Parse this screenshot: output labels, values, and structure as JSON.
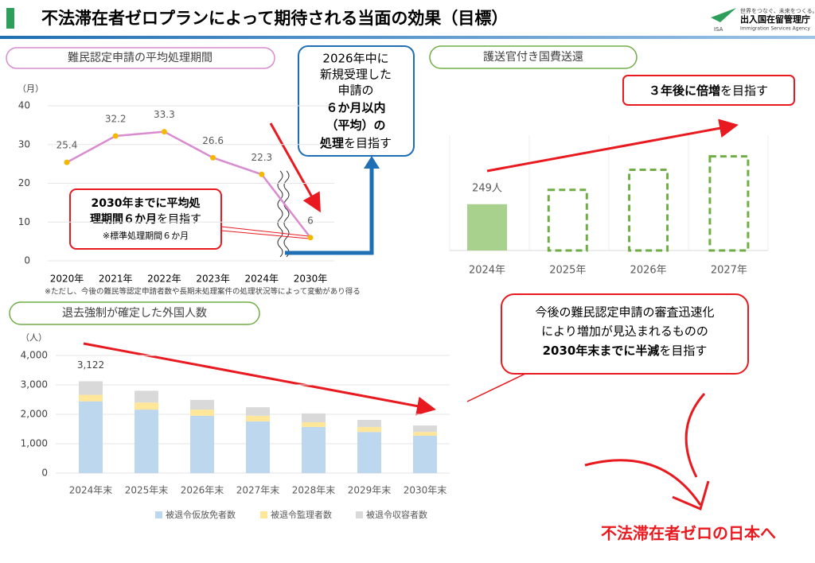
{
  "header": {
    "title": "不法滞在者ゼロプランによって期待される当面の効果（目標）",
    "logo": {
      "tagline": "世界をつなぐ、未来をつくる。",
      "name": "出入国在留管理庁",
      "english": "Immigration Services Agency",
      "abbr": "ISA"
    }
  },
  "chart_data": [
    {
      "type": "line",
      "title": "難民認定申請の平均処理期間",
      "y_unit": "（月）",
      "categories": [
        "2020年",
        "2021年",
        "2022年",
        "2023年",
        "2024年",
        "2030年"
      ],
      "values": [
        25.4,
        32.2,
        33.3,
        26.6,
        22.3,
        6
      ],
      "color": "#d98bd0",
      "marker_color": "#f5b800",
      "ylim": [
        0,
        40
      ],
      "yticks": [
        0,
        10,
        20,
        30,
        40
      ],
      "grid": true,
      "note": "※ただし、今後の難民等認定申請者数や長期未処理案件の処理状況等によって変動があり得る",
      "callout": [
        "2030年までに平均処",
        "理期間６か月",
        "を目指す",
        "※標準処理期間６か月"
      ]
    },
    {
      "type": "bar",
      "title": "護送官付き国費送還",
      "categories": [
        "2024年",
        "2025年",
        "2026年",
        "2027年"
      ],
      "values": [
        249,
        326,
        434,
        506
      ],
      "value_labels": [
        "249人",
        null,
        null,
        null
      ],
      "styles": [
        "solid",
        "dashed",
        "dashed",
        "dashed"
      ],
      "color": "#a9d18e",
      "target_color": "#70ad47",
      "ylim": [
        0,
        620
      ],
      "callout": [
        "３年後に",
        "倍増",
        "を目指す"
      ]
    },
    {
      "type": "stacked_bar",
      "title": "退去強制が確定した外国人数",
      "y_unit": "（人）",
      "categories": [
        "2024年末",
        "2025年末",
        "2026年末",
        "2027年末",
        "2028年末",
        "2029年末",
        "2030年末"
      ],
      "series": [
        {
          "name": "被退令仮放免者数",
          "color": "#bdd7ee",
          "values": [
            2440,
            2160,
            1950,
            1760,
            1570,
            1400,
            1270
          ]
        },
        {
          "name": "被退令監理者数",
          "color": "#ffe699",
          "values": [
            220,
            240,
            210,
            190,
            160,
            170,
            130
          ]
        },
        {
          "name": "被退令収容者数",
          "color": "#d9d9d9",
          "values": [
            462,
            400,
            330,
            290,
            300,
            240,
            220
          ]
        }
      ],
      "totals": [
        3122,
        null,
        null,
        null,
        null,
        null,
        null
      ],
      "total_labels": [
        "3,122",
        null,
        null,
        null,
        null,
        null,
        null
      ],
      "ylim": [
        0,
        4000
      ],
      "yticks": [
        0,
        {
          "value": 1000,
          "label": "1,000"
        },
        {
          "value": 2000,
          "label": "2,000"
        },
        {
          "value": 3000,
          "label": "3,000"
        },
        {
          "value": 4000,
          "label": "4,000"
        }
      ],
      "grid": true,
      "legend": "bottom",
      "callout": [
        "今後の難民認定申請の審査迅速化",
        "により増加が見込まれるものの",
        "2030年末までに半減",
        "を目指す"
      ]
    }
  ],
  "processing_target": [
    "2026年中に",
    "新規受理した",
    "申請の",
    "６か月以内",
    "（平均）の",
    "処理",
    "を目指す"
  ],
  "footer": "不法滞在者ゼロの日本へ"
}
